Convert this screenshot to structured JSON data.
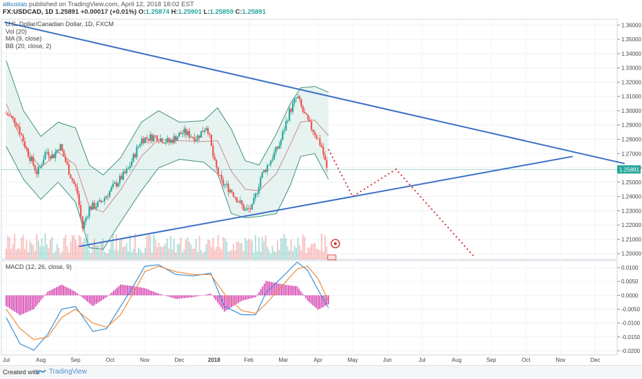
{
  "header": {
    "author": "atkustas",
    "published": "published on TradingView.com, April 12, 2018 18:02 EST",
    "symbol": "FX:USDCAD, 1D",
    "last": "1.25891",
    "change": "+0.00017 (+0.01%)",
    "o_label": "O:",
    "o": "1.25874",
    "h_label": "H:",
    "h": "1.25901",
    "l_label": "L:",
    "l": "1.25859",
    "c_label": "C:",
    "c": "1.25891"
  },
  "legend": {
    "title": "U.S. Dollar/Canadian Dollar, 1D, FXCM",
    "vol": "Vol (20)",
    "ma": "MA (9, close)",
    "bb": "BB (20, close, 2)",
    "macd": "MACD (12, 26, close, 9)"
  },
  "footer": {
    "created": "Created with",
    "brand": "TradingView"
  },
  "colors": {
    "trendline": "#3a6fc4",
    "up": "#26a69a",
    "down": "#ef5350",
    "projection": "#d32f2f",
    "macd": "#3a8fd8",
    "signal": "#ef8a3a",
    "hist": "#d94fb5",
    "bb_fill": "#e6f3f1"
  },
  "chart_data": [
    {
      "type": "candlestick",
      "title": "U.S. Dollar/Canadian Dollar, 1D, FXCM",
      "x_ticks": [
        "Jul",
        "Aug",
        "Sep",
        "Oct",
        "Nov",
        "Dec",
        "2018",
        "Feb",
        "Mar",
        "Apr",
        "May",
        "Jun",
        "Jul",
        "Aug",
        "Sep",
        "Oct",
        "Nov",
        "Dec"
      ],
      "y_ticks": [
        "1.36000",
        "1.35000",
        "1.34000",
        "1.33000",
        "1.32000",
        "1.31000",
        "1.30000",
        "1.29000",
        "1.28000",
        "1.27000",
        "1.26000",
        "1.25000",
        "1.24000",
        "1.23000",
        "1.22000",
        "1.21000",
        "1.20000"
      ],
      "ylim": [
        1.196,
        1.364
      ],
      "last_price": "1.25891",
      "close_path": [
        {
          "t": 0,
          "v": 1.298
        },
        {
          "t": 0.3,
          "v": 1.292
        },
        {
          "t": 0.6,
          "v": 1.272
        },
        {
          "t": 0.9,
          "v": 1.256
        },
        {
          "t": 1.15,
          "v": 1.272
        },
        {
          "t": 1.35,
          "v": 1.268
        },
        {
          "t": 1.55,
          "v": 1.276
        },
        {
          "t": 1.85,
          "v": 1.255
        },
        {
          "t": 2.05,
          "v": 1.243
        },
        {
          "t": 2.2,
          "v": 1.218
        },
        {
          "t": 2.4,
          "v": 1.232
        },
        {
          "t": 2.7,
          "v": 1.235
        },
        {
          "t": 3.1,
          "v": 1.247
        },
        {
          "t": 3.5,
          "v": 1.258
        },
        {
          "t": 3.9,
          "v": 1.28
        },
        {
          "t": 4.3,
          "v": 1.282
        },
        {
          "t": 4.7,
          "v": 1.278
        },
        {
          "t": 5.1,
          "v": 1.285
        },
        {
          "t": 5.5,
          "v": 1.281
        },
        {
          "t": 5.8,
          "v": 1.29
        },
        {
          "t": 6.0,
          "v": 1.264
        },
        {
          "t": 6.2,
          "v": 1.25
        },
        {
          "t": 6.5,
          "v": 1.244
        },
        {
          "t": 6.9,
          "v": 1.23
        },
        {
          "t": 7.1,
          "v": 1.232
        },
        {
          "t": 7.35,
          "v": 1.254
        },
        {
          "t": 7.6,
          "v": 1.264
        },
        {
          "t": 7.9,
          "v": 1.277
        },
        {
          "t": 8.15,
          "v": 1.298
        },
        {
          "t": 8.4,
          "v": 1.31
        },
        {
          "t": 8.55,
          "v": 1.3
        },
        {
          "t": 8.75,
          "v": 1.29
        },
        {
          "t": 8.9,
          "v": 1.285
        },
        {
          "t": 9.1,
          "v": 1.275
        },
        {
          "t": 9.25,
          "v": 1.259
        }
      ],
      "bollinger_upper": [
        {
          "t": 0,
          "v": 1.335
        },
        {
          "t": 0.5,
          "v": 1.3
        },
        {
          "t": 1.0,
          "v": 1.282
        },
        {
          "t": 1.5,
          "v": 1.292
        },
        {
          "t": 2.0,
          "v": 1.288
        },
        {
          "t": 2.4,
          "v": 1.262
        },
        {
          "t": 2.8,
          "v": 1.255
        },
        {
          "t": 3.3,
          "v": 1.267
        },
        {
          "t": 3.9,
          "v": 1.292
        },
        {
          "t": 4.4,
          "v": 1.3
        },
        {
          "t": 5.0,
          "v": 1.292
        },
        {
          "t": 5.7,
          "v": 1.293
        },
        {
          "t": 6.1,
          "v": 1.302
        },
        {
          "t": 6.5,
          "v": 1.287
        },
        {
          "t": 6.9,
          "v": 1.265
        },
        {
          "t": 7.3,
          "v": 1.262
        },
        {
          "t": 7.8,
          "v": 1.284
        },
        {
          "t": 8.2,
          "v": 1.305
        },
        {
          "t": 8.5,
          "v": 1.316
        },
        {
          "t": 8.9,
          "v": 1.317
        },
        {
          "t": 9.3,
          "v": 1.313
        }
      ],
      "bollinger_lower": [
        {
          "t": 0,
          "v": 1.275
        },
        {
          "t": 0.5,
          "v": 1.252
        },
        {
          "t": 1.0,
          "v": 1.238
        },
        {
          "t": 1.5,
          "v": 1.25
        },
        {
          "t": 2.0,
          "v": 1.236
        },
        {
          "t": 2.4,
          "v": 1.204
        },
        {
          "t": 2.8,
          "v": 1.203
        },
        {
          "t": 3.3,
          "v": 1.222
        },
        {
          "t": 3.9,
          "v": 1.244
        },
        {
          "t": 4.4,
          "v": 1.26
        },
        {
          "t": 5.0,
          "v": 1.266
        },
        {
          "t": 5.7,
          "v": 1.264
        },
        {
          "t": 6.1,
          "v": 1.256
        },
        {
          "t": 6.5,
          "v": 1.228
        },
        {
          "t": 6.9,
          "v": 1.225
        },
        {
          "t": 7.3,
          "v": 1.226
        },
        {
          "t": 7.8,
          "v": 1.228
        },
        {
          "t": 8.2,
          "v": 1.248
        },
        {
          "t": 8.5,
          "v": 1.268
        },
        {
          "t": 8.9,
          "v": 1.27
        },
        {
          "t": 9.3,
          "v": 1.252
        }
      ],
      "trendlines": [
        {
          "name": "upper",
          "from": {
            "t": -0.05,
            "v": 1.362
          },
          "to": {
            "t": 17.85,
            "v": 1.263
          }
        },
        {
          "name": "lower",
          "from": {
            "t": 2.1,
            "v": 1.205
          },
          "to": {
            "t": 16.35,
            "v": 1.268
          }
        }
      ],
      "projection": [
        {
          "t": 9.3,
          "v": 1.273
        },
        {
          "t": 10.0,
          "v": 1.24
        },
        {
          "t": 11.25,
          "v": 1.259
        },
        {
          "t": 13.5,
          "v": 1.198
        }
      ]
    },
    {
      "type": "line",
      "title": "MACD (12, 26, close, 9)",
      "y_ticks": [
        "0.0100",
        "0.0050",
        "0.0000",
        "-0.0050",
        "-0.0100",
        "-0.0150",
        "-0.0200"
      ],
      "ylim": [
        -0.0215,
        0.0125
      ],
      "series": [
        {
          "name": "MACD",
          "points": [
            {
              "t": 0,
              "v": -0.008
            },
            {
              "t": 0.4,
              "v": -0.0175
            },
            {
              "t": 0.8,
              "v": -0.0198
            },
            {
              "t": 1.2,
              "v": -0.014
            },
            {
              "t": 1.6,
              "v": -0.005
            },
            {
              "t": 2.0,
              "v": -0.004
            },
            {
              "t": 2.5,
              "v": -0.013
            },
            {
              "t": 2.9,
              "v": -0.012
            },
            {
              "t": 3.3,
              "v": -0.004
            },
            {
              "t": 3.7,
              "v": 0.004
            },
            {
              "t": 4.0,
              "v": 0.0105
            },
            {
              "t": 4.4,
              "v": 0.011
            },
            {
              "t": 4.9,
              "v": 0.0075
            },
            {
              "t": 5.4,
              "v": 0.007
            },
            {
              "t": 5.9,
              "v": 0.008
            },
            {
              "t": 6.3,
              "v": -0.004
            },
            {
              "t": 6.8,
              "v": -0.007
            },
            {
              "t": 7.2,
              "v": -0.007
            },
            {
              "t": 7.5,
              "v": 0.001
            },
            {
              "t": 8.0,
              "v": 0.007
            },
            {
              "t": 8.4,
              "v": 0.012
            },
            {
              "t": 8.7,
              "v": 0.009
            },
            {
              "t": 9.0,
              "v": 0.002
            },
            {
              "t": 9.3,
              "v": -0.0045
            }
          ]
        },
        {
          "name": "Signal",
          "points": [
            {
              "t": 0,
              "v": -0.005
            },
            {
              "t": 0.4,
              "v": -0.012
            },
            {
              "t": 0.8,
              "v": -0.016
            },
            {
              "t": 1.2,
              "v": -0.015
            },
            {
              "t": 1.6,
              "v": -0.008
            },
            {
              "t": 2.0,
              "v": -0.005
            },
            {
              "t": 2.5,
              "v": -0.01
            },
            {
              "t": 2.9,
              "v": -0.0115
            },
            {
              "t": 3.3,
              "v": -0.007
            },
            {
              "t": 3.7,
              "v": 0.0015
            },
            {
              "t": 4.0,
              "v": 0.0085
            },
            {
              "t": 4.4,
              "v": 0.0105
            },
            {
              "t": 4.9,
              "v": 0.0085
            },
            {
              "t": 5.4,
              "v": 0.0075
            },
            {
              "t": 5.9,
              "v": 0.0075
            },
            {
              "t": 6.3,
              "v": 0.0005
            },
            {
              "t": 6.8,
              "v": -0.0055
            },
            {
              "t": 7.2,
              "v": -0.0065
            },
            {
              "t": 7.5,
              "v": -0.003
            },
            {
              "t": 8.0,
              "v": 0.004
            },
            {
              "t": 8.4,
              "v": 0.0095
            },
            {
              "t": 8.7,
              "v": 0.0105
            },
            {
              "t": 9.0,
              "v": 0.006
            },
            {
              "t": 9.3,
              "v": -0.002
            }
          ]
        }
      ]
    }
  ]
}
